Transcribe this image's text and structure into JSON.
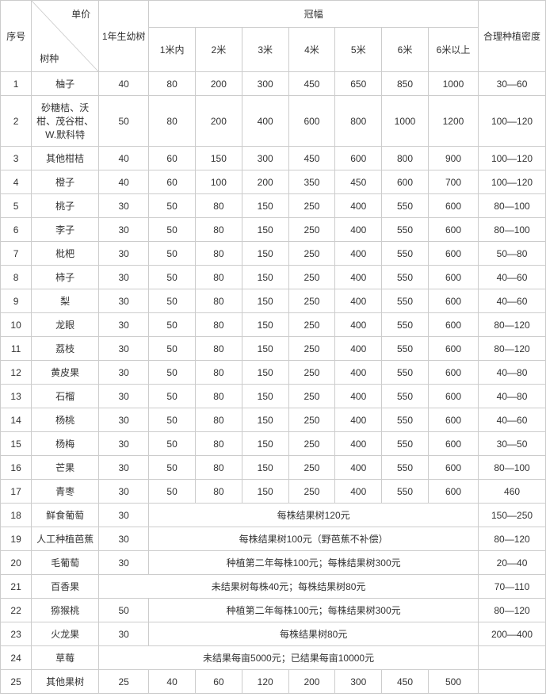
{
  "colors": {
    "border": "#cccccc",
    "text": "#333333",
    "background": "#ffffff"
  },
  "header": {
    "seq": "序号",
    "diag_top": "单价",
    "diag_bottom": "树种",
    "year1": "1年生幼树",
    "crown": "冠幅",
    "density": "合理种植密度",
    "crown_cols": [
      "1米内",
      "2米",
      "3米",
      "4米",
      "5米",
      "6米",
      "6米以上"
    ]
  },
  "rows": [
    {
      "n": "1",
      "kind": "柚子",
      "y": "40",
      "g": [
        "80",
        "200",
        "300",
        "450",
        "650",
        "850",
        "1000"
      ],
      "d": "30—60"
    },
    {
      "n": "2",
      "kind": "砂糖桔、沃柑、茂谷柑、W.默科特",
      "y": "50",
      "g": [
        "80",
        "200",
        "400",
        "600",
        "800",
        "1000",
        "1200"
      ],
      "d": "100—120",
      "tall": true
    },
    {
      "n": "3",
      "kind": "其他柑桔",
      "y": "40",
      "g": [
        "60",
        "150",
        "300",
        "450",
        "600",
        "800",
        "900"
      ],
      "d": "100—120"
    },
    {
      "n": "4",
      "kind": "橙子",
      "y": "40",
      "g": [
        "60",
        "100",
        "200",
        "350",
        "450",
        "600",
        "700"
      ],
      "d": "100—120"
    },
    {
      "n": "5",
      "kind": "桃子",
      "y": "30",
      "g": [
        "50",
        "80",
        "150",
        "250",
        "400",
        "550",
        "600"
      ],
      "d": "80—100"
    },
    {
      "n": "6",
      "kind": "李子",
      "y": "30",
      "g": [
        "50",
        "80",
        "150",
        "250",
        "400",
        "550",
        "600"
      ],
      "d": "80—100"
    },
    {
      "n": "7",
      "kind": "枇杷",
      "y": "30",
      "g": [
        "50",
        "80",
        "150",
        "250",
        "400",
        "550",
        "600"
      ],
      "d": "50—80"
    },
    {
      "n": "8",
      "kind": "柿子",
      "y": "30",
      "g": [
        "50",
        "80",
        "150",
        "250",
        "400",
        "550",
        "600"
      ],
      "d": "40—60"
    },
    {
      "n": "9",
      "kind": "梨",
      "y": "30",
      "g": [
        "50",
        "80",
        "150",
        "250",
        "400",
        "550",
        "600"
      ],
      "d": "40—60"
    },
    {
      "n": "10",
      "kind": "龙眼",
      "y": "30",
      "g": [
        "50",
        "80",
        "150",
        "250",
        "400",
        "550",
        "600"
      ],
      "d": "80—120"
    },
    {
      "n": "11",
      "kind": "荔枝",
      "y": "30",
      "g": [
        "50",
        "80",
        "150",
        "250",
        "400",
        "550",
        "600"
      ],
      "d": "80—120"
    },
    {
      "n": "12",
      "kind": "黄皮果",
      "y": "30",
      "g": [
        "50",
        "80",
        "150",
        "250",
        "400",
        "550",
        "600"
      ],
      "d": "40—80"
    },
    {
      "n": "13",
      "kind": "石榴",
      "y": "30",
      "g": [
        "50",
        "80",
        "150",
        "250",
        "400",
        "550",
        "600"
      ],
      "d": "40—80"
    },
    {
      "n": "14",
      "kind": "杨桃",
      "y": "30",
      "g": [
        "50",
        "80",
        "150",
        "250",
        "400",
        "550",
        "600"
      ],
      "d": "40—60"
    },
    {
      "n": "15",
      "kind": "杨梅",
      "y": "30",
      "g": [
        "50",
        "80",
        "150",
        "250",
        "400",
        "550",
        "600"
      ],
      "d": "30—50"
    },
    {
      "n": "16",
      "kind": "芒果",
      "y": "30",
      "g": [
        "50",
        "80",
        "150",
        "250",
        "400",
        "550",
        "600"
      ],
      "d": "80—100"
    },
    {
      "n": "17",
      "kind": "青枣",
      "y": "30",
      "g": [
        "50",
        "80",
        "150",
        "250",
        "400",
        "550",
        "600"
      ],
      "d": "460"
    },
    {
      "n": "18",
      "kind": "鲜食葡萄",
      "y": "30",
      "span": "每株结果树120元",
      "d": "150—250"
    },
    {
      "n": "19",
      "kind": "人工种植芭蕉",
      "y": "30",
      "span": "每株结果树100元（野芭蕉不补偿）",
      "d": "80—120"
    },
    {
      "n": "20",
      "kind": "毛葡萄",
      "y": "30",
      "span": "种植第二年每株100元；每株结果树300元",
      "d": "20—40"
    },
    {
      "n": "21",
      "kind": "百香果",
      "span8": "未结果树每株40元；每株结果树80元",
      "d": "70—110"
    },
    {
      "n": "22",
      "kind": "猕猴桃",
      "y": "50",
      "span": "种植第二年每株100元；每株结果树300元",
      "d": "80—120"
    },
    {
      "n": "23",
      "kind": "火龙果",
      "y": "30",
      "span": "每株结果树80元",
      "d": "200—400"
    },
    {
      "n": "24",
      "kind": "草莓",
      "span8": "未结果每亩5000元；已结果每亩10000元",
      "d": ""
    },
    {
      "n": "25",
      "kind": "其他果树",
      "y": "25",
      "g": [
        "40",
        "60",
        "120",
        "200",
        "300",
        "450",
        "500"
      ],
      "d": ""
    }
  ]
}
